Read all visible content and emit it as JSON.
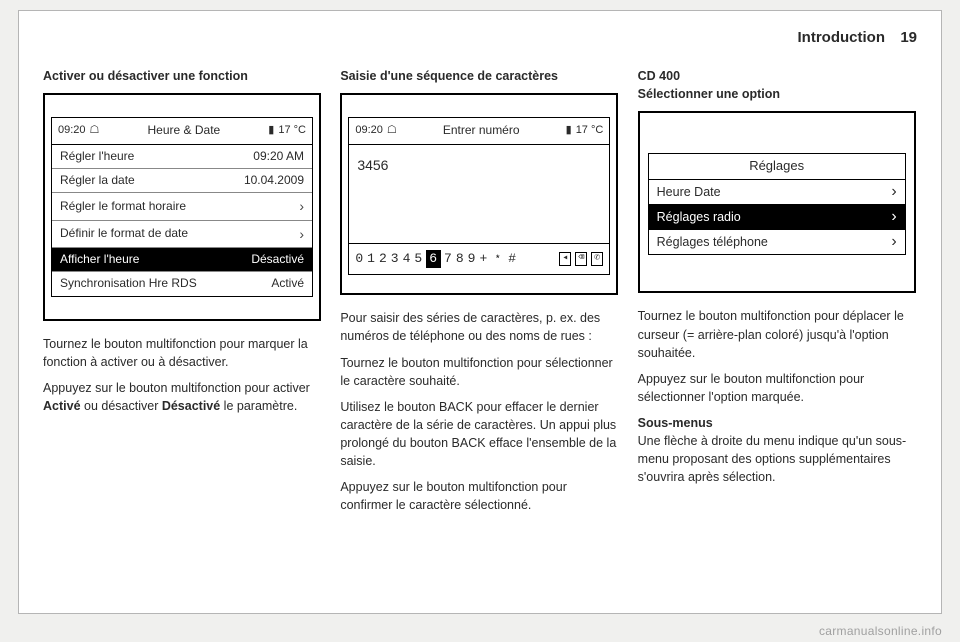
{
  "header": {
    "title": "Introduction",
    "page": "19"
  },
  "col1": {
    "heading": "Activer ou désactiver une fonction",
    "screen": {
      "time": "09:20",
      "title": "Heure & Date",
      "temp": "17 °C",
      "rows": [
        {
          "label": "Régler l'heure",
          "value": "09:20 AM",
          "selected": false
        },
        {
          "label": "Régler la date",
          "value": "10.04.2009",
          "selected": false
        },
        {
          "label": "Régler le format horaire",
          "value": "›",
          "selected": false,
          "arrow": true
        },
        {
          "label": "Définir le format de date",
          "value": "›",
          "selected": false,
          "arrow": true
        },
        {
          "label": "Afficher l'heure",
          "value": "Désactivé",
          "selected": true
        },
        {
          "label": "Synchronisation Hre RDS",
          "value": "Activé",
          "selected": false
        }
      ]
    },
    "p1": "Tournez le bouton multifonction pour marquer la fonction à activer ou à désactiver.",
    "p2a": "Appuyez sur le bouton multifonction pour activer ",
    "p2b": "Activé",
    "p2c": " ou désactiver ",
    "p2d": "Désactivé",
    "p2e": " le paramètre."
  },
  "col2": {
    "heading": "Saisie d'une séquence de caractères",
    "screen": {
      "time": "09:20",
      "title": "Entrer numéro",
      "temp": "17 °C",
      "entered": "3456",
      "digits": [
        "0",
        "1",
        "2",
        "3",
        "4",
        "5",
        "6",
        "7",
        "8",
        "9",
        "+",
        "﹡",
        "#"
      ],
      "selected_index": 6
    },
    "p1": "Pour saisir des séries de caractères, p. ex. des numéros de téléphone ou des noms de rues :",
    "p2": "Tournez le bouton multifonction pour sélectionner le caractère souhaité.",
    "p3": "Utilisez le bouton BACK pour effacer le dernier caractère de la série de caractères. Un appui plus prolongé du bouton BACK efface l'ensemble de la saisie.",
    "p4": "Appuyez sur le bouton multifonction pour confirmer le caractère sélectionné."
  },
  "col3": {
    "heading1": "CD 400",
    "heading2": "Sélectionner une option",
    "screen": {
      "title": "Réglages",
      "rows": [
        {
          "label": "Heure Date",
          "selected": false
        },
        {
          "label": "Réglages radio",
          "selected": true
        },
        {
          "label": "Réglages téléphone",
          "selected": false
        }
      ]
    },
    "p1": "Tournez le bouton multifonction pour déplacer le curseur (= arrière-plan coloré) jusqu'à l'option souhaitée.",
    "p2": "Appuyez sur le bouton multifonction pour sélectionner l'option marquée.",
    "sub_heading": "Sous-menus",
    "p3": "Une flèche à droite du menu indique qu'un sous-menu proposant des options supplémentaires s'ouvrira après sélection."
  },
  "watermark": "carmanualsonline.info"
}
